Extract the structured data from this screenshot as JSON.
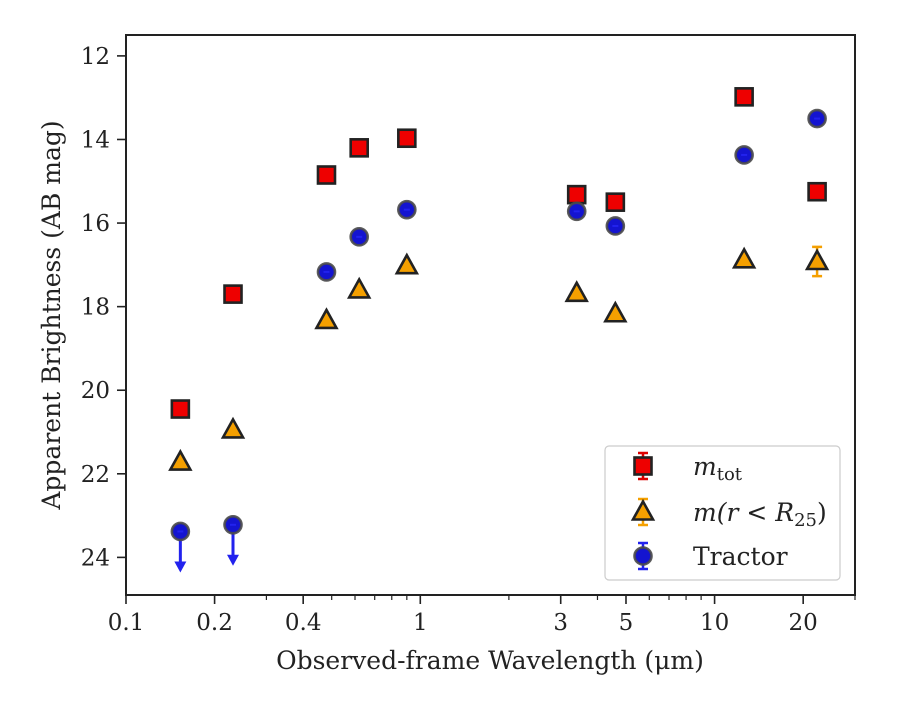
{
  "chart_data": {
    "type": "scatter",
    "title": "",
    "xlabel": "Observed-frame Wavelength (μm)",
    "ylabel": "Apparent Brightness (AB mag)",
    "xscale": "log",
    "xlim": [
      0.1,
      30
    ],
    "ylim": [
      11.5,
      24.9
    ],
    "yinverted": true,
    "grid": false,
    "legend_position": "lower right",
    "x_ticks": [
      {
        "value": 0.1,
        "label": "0.1"
      },
      {
        "value": 0.2,
        "label": "0.2"
      },
      {
        "value": 0.4,
        "label": "0.4"
      },
      {
        "value": 1,
        "label": "1"
      },
      {
        "value": 3,
        "label": "3"
      },
      {
        "value": 5,
        "label": "5"
      },
      {
        "value": 10,
        "label": "10"
      },
      {
        "value": 20,
        "label": "20"
      }
    ],
    "x_minor_ticks": [
      0.3,
      0.5,
      0.6,
      0.7,
      0.8,
      0.9,
      2,
      4,
      6,
      7,
      8,
      9,
      30
    ],
    "y_ticks": [
      {
        "value": 12,
        "label": "12"
      },
      {
        "value": 14,
        "label": "14"
      },
      {
        "value": 16,
        "label": "16"
      },
      {
        "value": 18,
        "label": "18"
      },
      {
        "value": 20,
        "label": "20"
      },
      {
        "value": 22,
        "label": "22"
      },
      {
        "value": 24,
        "label": "24"
      }
    ],
    "series": [
      {
        "name": "m_tot",
        "legend_label": "m",
        "legend_sub": "tot",
        "marker": "square",
        "color": "#ee0000",
        "errcolor": "#dd0000",
        "points": [
          {
            "x": 0.153,
            "y": 20.45
          },
          {
            "x": 0.231,
            "y": 17.7
          },
          {
            "x": 0.48,
            "y": 14.85
          },
          {
            "x": 0.62,
            "y": 14.2
          },
          {
            "x": 0.9,
            "y": 13.97
          },
          {
            "x": 3.4,
            "y": 15.32
          },
          {
            "x": 4.6,
            "y": 15.5
          },
          {
            "x": 12.6,
            "y": 12.98
          },
          {
            "x": 22.3,
            "y": 15.25
          }
        ]
      },
      {
        "name": "m(r<R25)",
        "legend_pre": "m(r < R",
        "legend_sub": "25",
        "legend_post": ")",
        "marker": "triangle",
        "color": "#f5a000",
        "errcolor": "#f5a000",
        "points": [
          {
            "x": 0.153,
            "y": 21.72
          },
          {
            "x": 0.231,
            "y": 20.95
          },
          {
            "x": 0.48,
            "y": 18.33
          },
          {
            "x": 0.62,
            "y": 17.6
          },
          {
            "x": 0.9,
            "y": 17.02
          },
          {
            "x": 3.4,
            "y": 17.68
          },
          {
            "x": 4.6,
            "y": 18.17
          },
          {
            "x": 12.6,
            "y": 16.88
          },
          {
            "x": 22.3,
            "y": 16.92,
            "yerr": 0.35
          }
        ]
      },
      {
        "name": "Tractor",
        "legend_label": "Tractor",
        "marker": "circle",
        "color": "#1414d0",
        "errcolor": "#2222ee",
        "points": [
          {
            "x": 0.153,
            "y": 23.38,
            "upper_limit": true
          },
          {
            "x": 0.231,
            "y": 23.22,
            "upper_limit": true
          },
          {
            "x": 0.48,
            "y": 17.17
          },
          {
            "x": 0.62,
            "y": 16.33
          },
          {
            "x": 0.9,
            "y": 15.68
          },
          {
            "x": 3.4,
            "y": 15.72
          },
          {
            "x": 4.6,
            "y": 16.07
          },
          {
            "x": 12.6,
            "y": 14.37
          },
          {
            "x": 22.3,
            "y": 13.5
          }
        ]
      }
    ]
  }
}
